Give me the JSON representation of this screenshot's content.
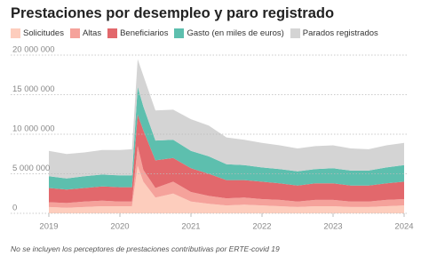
{
  "chart_data": {
    "type": "stacked-area",
    "title": "Prestaciones por desempleo y paro registrado",
    "note": "No se incluyen los perceptores de prestaciones contributivas por ERTE-covid 19",
    "x": [
      2019,
      2019.25,
      2019.5,
      2019.75,
      2020,
      2020.17,
      2020.25,
      2020.33,
      2020.5,
      2020.75,
      2021,
      2021.25,
      2021.5,
      2021.75,
      2022,
      2022.25,
      2022.5,
      2022.75,
      2023,
      2023.25,
      2023.5,
      2023.75,
      2024
    ],
    "xlim": [
      2019,
      2024
    ],
    "xticks": [
      2019,
      2020,
      2021,
      2022,
      2023,
      2024
    ],
    "ylim": [
      0,
      20000000
    ],
    "yticks": [
      0,
      {
        "value": 5000000,
        "label": "5 000 000"
      },
      {
        "value": 10000000,
        "label": "10 000 000"
      },
      {
        "value": 15000000,
        "label": "15 000 000"
      },
      {
        "value": 20000000,
        "label": "20 000 000"
      }
    ],
    "grid": true,
    "series": [
      {
        "name": "Solicitudes",
        "color": "#fdcdbd",
        "values": [
          800000,
          700000,
          800000,
          900000,
          900000,
          900000,
          6000000,
          4000000,
          2000000,
          2500000,
          1500000,
          1200000,
          1000000,
          1100000,
          1000000,
          900000,
          800000,
          900000,
          900000,
          800000,
          800000,
          900000,
          1000000
        ]
      },
      {
        "name": "Altas",
        "color": "#f5a29b",
        "values": [
          600000,
          600000,
          700000,
          700000,
          600000,
          600000,
          2500000,
          1500000,
          1200000,
          1500000,
          1200000,
          1000000,
          900000,
          900000,
          800000,
          800000,
          700000,
          800000,
          800000,
          700000,
          700000,
          800000,
          800000
        ]
      },
      {
        "name": "Beneficiarios",
        "color": "#e2686c",
        "values": [
          1800000,
          1700000,
          1700000,
          1800000,
          1800000,
          1800000,
          4000000,
          5000000,
          3500000,
          3000000,
          3000000,
          2800000,
          2300000,
          2200000,
          2200000,
          2100000,
          2000000,
          2100000,
          2100000,
          2000000,
          2000000,
          2100000,
          2200000
        ]
      },
      {
        "name": "Gasto (en miles de euros)",
        "color": "#5dbfae",
        "values": [
          1500000,
          1400000,
          1500000,
          1500000,
          1500000,
          1500000,
          3500000,
          3000000,
          2500000,
          2300000,
          2200000,
          2200000,
          2000000,
          1900000,
          1800000,
          1800000,
          1800000,
          1800000,
          1900000,
          1900000,
          1900000,
          2000000,
          2100000
        ]
      },
      {
        "name": "Parados registrados",
        "color": "#d4d4d4",
        "values": [
          3200000,
          3100000,
          3000000,
          3100000,
          3200000,
          3300000,
          3500000,
          3900000,
          3800000,
          3800000,
          4000000,
          3900000,
          3400000,
          3200000,
          3100000,
          3000000,
          2900000,
          2900000,
          2900000,
          2800000,
          2700000,
          2800000,
          2800000
        ]
      }
    ]
  }
}
